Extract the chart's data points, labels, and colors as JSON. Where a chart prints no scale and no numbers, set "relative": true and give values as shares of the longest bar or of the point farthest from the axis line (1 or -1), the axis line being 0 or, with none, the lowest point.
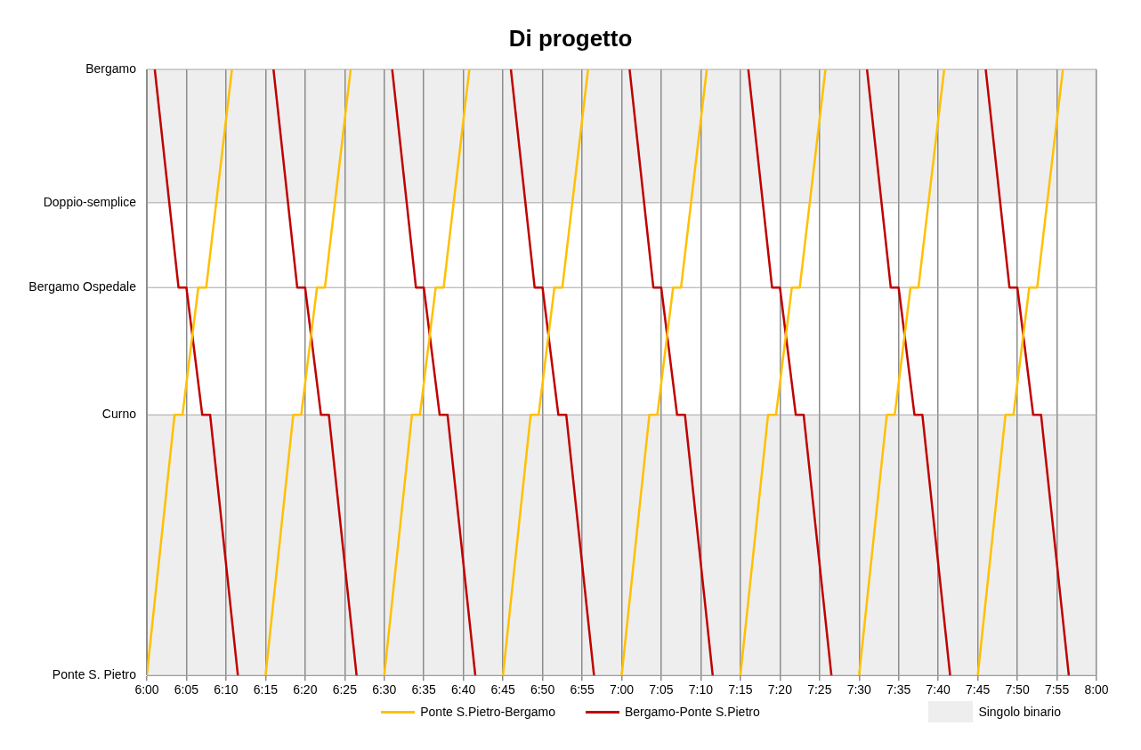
{
  "chart_data": {
    "type": "line",
    "title": "Di progetto",
    "xlim": [
      6,
      8
    ],
    "xticks": [
      {
        "value": 6,
        "label": "6:00"
      },
      {
        "value": 6.0833,
        "label": "6:05"
      },
      {
        "value": 6.1667,
        "label": "6:10"
      },
      {
        "value": 6.25,
        "label": "6:15"
      },
      {
        "value": 6.3333,
        "label": "6:20"
      },
      {
        "value": 6.4167,
        "label": "6:25"
      },
      {
        "value": 6.5,
        "label": "6:30"
      },
      {
        "value": 6.5833,
        "label": "6:35"
      },
      {
        "value": 6.6667,
        "label": "6:40"
      },
      {
        "value": 6.75,
        "label": "6:45"
      },
      {
        "value": 6.8333,
        "label": "6:50"
      },
      {
        "value": 6.9167,
        "label": "6:55"
      },
      {
        "value": 7,
        "label": "7:00"
      },
      {
        "value": 7.0833,
        "label": "7:05"
      },
      {
        "value": 7.1667,
        "label": "7:10"
      },
      {
        "value": 7.25,
        "label": "7:15"
      },
      {
        "value": 7.3333,
        "label": "7:20"
      },
      {
        "value": 7.4167,
        "label": "7:25"
      },
      {
        "value": 7.5,
        "label": "7:30"
      },
      {
        "value": 7.5833,
        "label": "7:35"
      },
      {
        "value": 7.6667,
        "label": "7:40"
      },
      {
        "value": 7.75,
        "label": "7:45"
      },
      {
        "value": 7.8333,
        "label": "7:50"
      },
      {
        "value": 7.9167,
        "label": "7:55"
      },
      {
        "value": 8,
        "label": "8:00"
      }
    ],
    "relative": true,
    "ref_lines": [
      {
        "axis": "y",
        "value": 0,
        "label": "Ponte S. Pietro",
        "color": "#a6a6a6"
      },
      {
        "axis": "y",
        "value": 0.43,
        "label": "Curno",
        "color": "#a6a6a6"
      },
      {
        "axis": "y",
        "value": 0.64,
        "label": "Bergamo Ospedale",
        "color": "#a6a6a6"
      },
      {
        "axis": "y",
        "value": 0.78,
        "label": "Doppio-semplice",
        "color": "#a6a6a6"
      },
      {
        "axis": "y",
        "value": 1,
        "label": "Bergamo",
        "color": "#a6a6a6"
      }
    ],
    "grid": "x",
    "legend": "bottom",
    "marker": "none",
    "line_style": "solid",
    "bands": [
      {
        "axis": "y",
        "from": 0,
        "to": 0.43,
        "label": "Singolo binario",
        "color": "#eeeeee"
      },
      {
        "axis": "y",
        "from": 0.78,
        "to": 1,
        "color": "#eeeeee"
      }
    ],
    "series": [
      {
        "name": "Ponte S.Pietro-Bergamo",
        "color": "#ffc000",
        "x": [
          6,
          6.0583,
          6.075,
          6.1083,
          6.125,
          6.1792,
          6.2,
          6.25,
          6.3083,
          6.325,
          6.3583,
          6.375,
          6.4292,
          6.45,
          6.5,
          6.5583,
          6.575,
          6.6083,
          6.625,
          6.6792,
          6.7,
          6.75,
          6.8083,
          6.825,
          6.8583,
          6.875,
          6.9292,
          6.95,
          7,
          7.0583,
          7.075,
          7.1083,
          7.125,
          7.1792,
          7.2,
          7.25,
          7.3083,
          7.325,
          7.3583,
          7.375,
          7.4292,
          7.45,
          7.5,
          7.5583,
          7.575,
          7.6083,
          7.625,
          7.6792,
          7.7,
          7.75,
          7.8083,
          7.825,
          7.8583,
          7.875,
          7.9292
        ],
        "values": [
          0,
          0.43,
          0.43,
          0.64,
          0.64,
          1,
          null,
          0,
          0.43,
          0.43,
          0.64,
          0.64,
          1,
          null,
          0,
          0.43,
          0.43,
          0.64,
          0.64,
          1,
          null,
          0,
          0.43,
          0.43,
          0.64,
          0.64,
          1,
          null,
          0,
          0.43,
          0.43,
          0.64,
          0.64,
          1,
          null,
          0,
          0.43,
          0.43,
          0.64,
          0.64,
          1,
          null,
          0,
          0.43,
          0.43,
          0.64,
          0.64,
          1,
          null,
          0,
          0.43,
          0.43,
          0.64,
          0.64,
          1
        ]
      },
      {
        "name": "Bergamo-Ponte S.Pietro",
        "color": "#c00000",
        "x": [
          6.0167,
          6.0667,
          6.0833,
          6.1167,
          6.1333,
          6.1917,
          6.22,
          6.2667,
          6.3167,
          6.3333,
          6.3667,
          6.3833,
          6.4417,
          6.47,
          6.5167,
          6.5667,
          6.5833,
          6.6167,
          6.6333,
          6.6917,
          6.72,
          6.7667,
          6.8167,
          6.8333,
          6.8667,
          6.8833,
          6.9417,
          6.97,
          7.0167,
          7.0667,
          7.0833,
          7.1167,
          7.1333,
          7.1917,
          7.22,
          7.2667,
          7.3167,
          7.3333,
          7.3667,
          7.3833,
          7.4417,
          7.47,
          7.5167,
          7.5667,
          7.5833,
          7.6167,
          7.6333,
          7.6917,
          7.72,
          7.7667,
          7.8167,
          7.8333,
          7.8667,
          7.8833,
          7.9417
        ],
        "values": [
          1,
          0.64,
          0.64,
          0.43,
          0.43,
          0,
          null,
          1,
          0.64,
          0.64,
          0.43,
          0.43,
          0,
          null,
          1,
          0.64,
          0.64,
          0.43,
          0.43,
          0,
          null,
          1,
          0.64,
          0.64,
          0.43,
          0.43,
          0,
          null,
          1,
          0.64,
          0.64,
          0.43,
          0.43,
          0,
          null,
          1,
          0.64,
          0.64,
          0.43,
          0.43,
          0,
          null,
          1,
          0.64,
          0.64,
          0.43,
          0.43,
          0,
          null,
          1,
          0.64,
          0.64,
          0.43,
          0.43,
          0
        ]
      }
    ]
  }
}
